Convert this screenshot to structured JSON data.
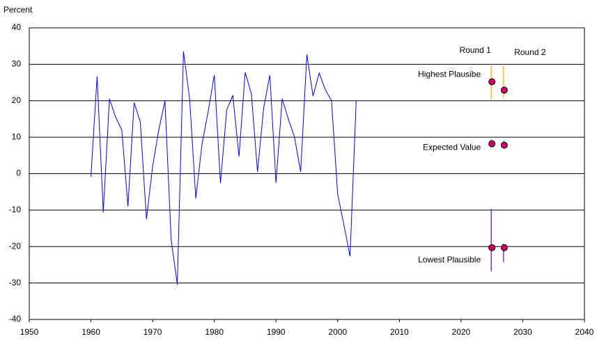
{
  "chart_data": {
    "type": "line",
    "y_label": "Percent",
    "x": [
      1960,
      1961,
      1962,
      1963,
      1964,
      1965,
      1966,
      1967,
      1968,
      1969,
      1970,
      1971,
      1972,
      1973,
      1974,
      1975,
      1976,
      1977,
      1978,
      1979,
      1980,
      1981,
      1982,
      1983,
      1984,
      1985,
      1986,
      1987,
      1988,
      1989,
      1990,
      1991,
      1992,
      1993,
      1994,
      1995,
      1996,
      1997,
      1998,
      1999,
      2000,
      2001,
      2002,
      2003
    ],
    "series": [
      {
        "color": "#0000ff",
        "values": [
          -0.8,
          26.7,
          -10.6,
          20.5,
          15.5,
          12,
          -9,
          19.5,
          14.2,
          -12.5,
          2,
          12,
          20,
          -18,
          -30.5,
          33.5,
          20.5,
          -6.8,
          8,
          17,
          27,
          -2.6,
          17.4,
          21.5,
          4.7,
          27.8,
          22,
          0.5,
          18,
          27,
          -2.5,
          20.5,
          15,
          10,
          0.5,
          32.7,
          21.3,
          27.6,
          23,
          20,
          -5.7,
          -14,
          -22.7,
          20
        ]
      }
    ],
    "estimate_labels": [
      "Highest Plausibe",
      "Expected Value",
      "Lowest Plausible"
    ],
    "range_colors": [
      "#ffa500",
      "#2e8b57",
      "#660099"
    ],
    "marker_color": "#cc0066",
    "rounds": [
      {
        "name": "Round 1",
        "x": 2025,
        "values": [
          25.2,
          8.2,
          -20.3
        ],
        "low": [
          20.4,
          7.2,
          -26.8
        ],
        "high": [
          29.6,
          9.4,
          -9.7
        ]
      },
      {
        "name": "Round 2",
        "x": 2027,
        "values": [
          22.9,
          7.8,
          -20.3
        ],
        "low": [
          20.8,
          7.0,
          -24.3
        ],
        "high": [
          29.6,
          9.0,
          -19.2
        ]
      }
    ],
    "xlim": [
      1950,
      2040
    ],
    "xticks": [
      1950,
      1960,
      1970,
      1980,
      1990,
      2000,
      2010,
      2020,
      2030,
      2040
    ],
    "ylim": [
      -40,
      40
    ],
    "yticks": [
      -40,
      -30,
      -20,
      -10,
      0,
      10,
      20,
      30,
      40
    ],
    "grid": true
  }
}
